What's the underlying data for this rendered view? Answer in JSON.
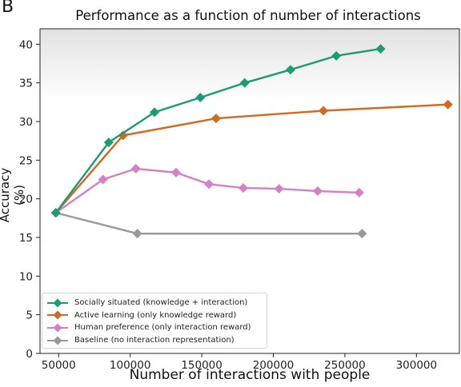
{
  "panel_label": "B",
  "chart_data": {
    "type": "line",
    "title": "Performance as a function of number of interactions",
    "xlabel": "Number of interactions with people",
    "ylabel": "Accuracy (%)",
    "xlim": [
      37000,
      330000
    ],
    "ylim": [
      0,
      42
    ],
    "xticks": [
      50000,
      100000,
      150000,
      200000,
      250000,
      300000
    ],
    "yticks": [
      0,
      5,
      10,
      15,
      20,
      25,
      30,
      35,
      40
    ],
    "legend_position": "lower-left",
    "grid": false,
    "series": [
      {
        "name": "Socially situated (knowledge + interaction)",
        "color": "#1a9c74",
        "x": [
          48000,
          85000,
          117000,
          149000,
          180000,
          212000,
          244000,
          275000
        ],
        "y": [
          18.2,
          27.3,
          31.2,
          33.1,
          35.0,
          36.7,
          38.5,
          39.4
        ]
      },
      {
        "name": "Active learning (only knowledge reward)",
        "color": "#d2691e",
        "x": [
          48000,
          95000,
          160000,
          235000,
          322000
        ],
        "y": [
          18.2,
          28.2,
          30.4,
          31.4,
          32.2
        ]
      },
      {
        "name": "Human preference (only interaction reward)",
        "color": "#d580c6",
        "x": [
          48000,
          81000,
          104000,
          132000,
          155000,
          179000,
          204000,
          231000,
          260000
        ],
        "y": [
          18.2,
          22.5,
          23.9,
          23.4,
          21.9,
          21.4,
          21.3,
          21.0,
          20.8
        ]
      },
      {
        "name": "Baseline (no interaction representation)",
        "color": "#999999",
        "x": [
          48000,
          105000,
          262000
        ],
        "y": [
          18.2,
          15.5,
          15.5
        ]
      }
    ]
  }
}
